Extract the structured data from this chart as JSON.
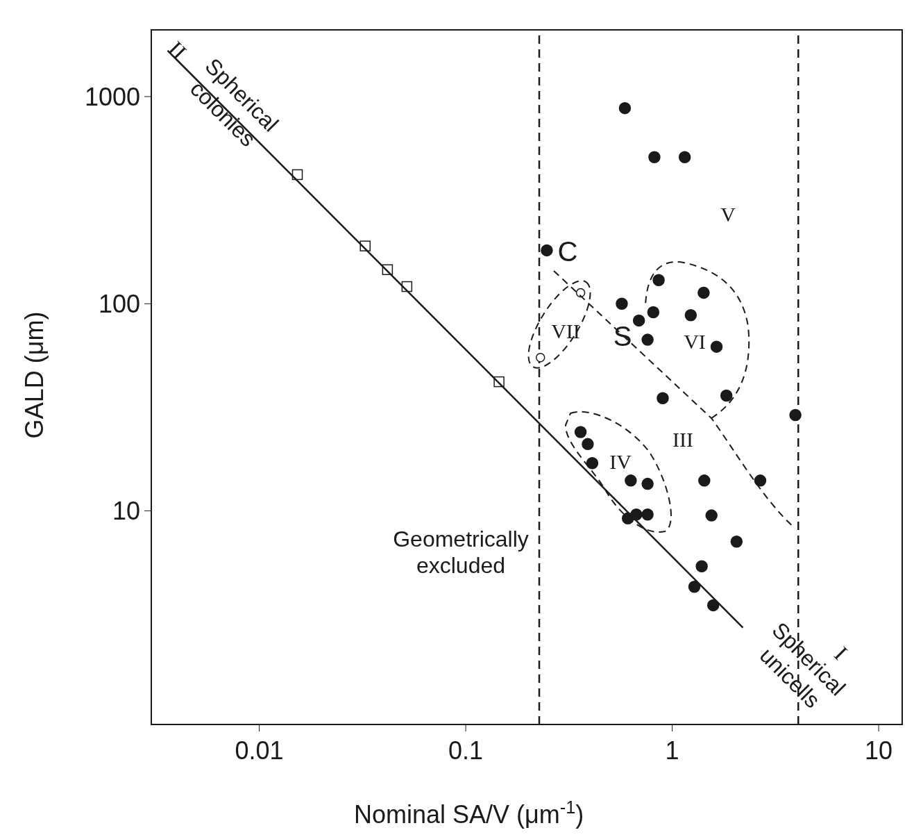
{
  "chart_data": {
    "type": "scatter",
    "xlabel": "Nominal SA/V (μm$^{-1}$)",
    "ylabel": "GALD (μm)",
    "log": "xy",
    "xlim": [
      0.003,
      13
    ],
    "ylim": [
      0.93,
      2100
    ],
    "xticks": [
      0.01,
      0.1,
      1,
      10
    ],
    "yticks": [
      10,
      100,
      1000
    ],
    "series": [
      {
        "marker": "circle",
        "color": "#1a1a1a",
        "x": [
          0.59,
          0.82,
          1.15,
          0.247,
          0.57,
          0.86,
          0.81,
          0.69,
          0.76,
          1.42,
          1.23,
          1.64,
          0.9,
          1.83,
          3.95,
          0.36,
          0.39,
          0.41,
          0.63,
          0.76,
          1.43,
          2.67,
          0.61,
          0.67,
          0.76,
          1.55,
          2.05,
          1.39,
          1.28,
          1.58
        ],
        "values": [
          880,
          510,
          510,
          181,
          100,
          130,
          91,
          83,
          67,
          113,
          88,
          62,
          35,
          36,
          29,
          24,
          21,
          17,
          14,
          13.5,
          14,
          14,
          9.2,
          9.6,
          9.6,
          9.5,
          7.1,
          5.4,
          4.3,
          3.5
        ]
      },
      {
        "marker": "circle",
        "color": "#ffffff",
        "x": [
          0.36,
          0.23
        ],
        "values": [
          113,
          55
        ]
      },
      {
        "marker": "square",
        "color": "#ffffff",
        "x": [
          0.0153,
          0.0326,
          0.0418,
          0.0519,
          0.145
        ],
        "values": [
          420,
          190,
          146,
          121,
          42
        ]
      },
      {
        "type": "line",
        "marker": "none",
        "line_style": "solid",
        "color": "#1a1a1a",
        "x": [
          0.0036,
          2.2
        ],
        "values": [
          1667,
          2.73
        ]
      }
    ],
    "ref_lines": [
      {
        "axis": "x",
        "value": 0.227,
        "line_style": "dashed",
        "color": "#1a1a1a"
      },
      {
        "axis": "x",
        "value": 4.08,
        "line_style": "dashed",
        "color": "#1a1a1a"
      }
    ],
    "annotations": [
      "C",
      "S",
      "I",
      "II",
      "III",
      "IV",
      "V",
      "VI",
      "VII",
      "Spherical\ncolonies",
      "Spherical\nunicells",
      "Geometrically\nexcluded"
    ]
  }
}
